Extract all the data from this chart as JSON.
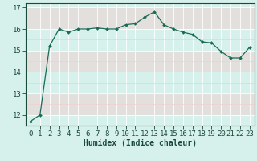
{
  "x": [
    0,
    1,
    2,
    3,
    4,
    5,
    6,
    7,
    8,
    9,
    10,
    11,
    12,
    13,
    14,
    15,
    16,
    17,
    18,
    19,
    20,
    21,
    22,
    23
  ],
  "y": [
    11.7,
    12.0,
    15.2,
    16.0,
    15.85,
    16.0,
    16.0,
    16.05,
    16.0,
    16.0,
    16.2,
    16.25,
    16.55,
    16.8,
    16.2,
    16.0,
    15.85,
    15.75,
    15.4,
    15.35,
    14.95,
    14.65,
    14.65,
    15.15
  ],
  "xlabel": "Humidex (Indice chaleur)",
  "ylim": [
    11.5,
    17.2
  ],
  "xlim": [
    -0.5,
    23.5
  ],
  "yticks": [
    12,
    13,
    14,
    15,
    16,
    17
  ],
  "xticks": [
    0,
    1,
    2,
    3,
    4,
    5,
    6,
    7,
    8,
    9,
    10,
    11,
    12,
    13,
    14,
    15,
    16,
    17,
    18,
    19,
    20,
    21,
    22,
    23
  ],
  "line_color": "#1a6b56",
  "marker_color": "#1a6b56",
  "bg_color": "#d6f0eb",
  "grid_white": "#ffffff",
  "grid_pink": "#f0d0d0",
  "xlabel_fontsize": 7,
  "tick_fontsize": 6.5
}
